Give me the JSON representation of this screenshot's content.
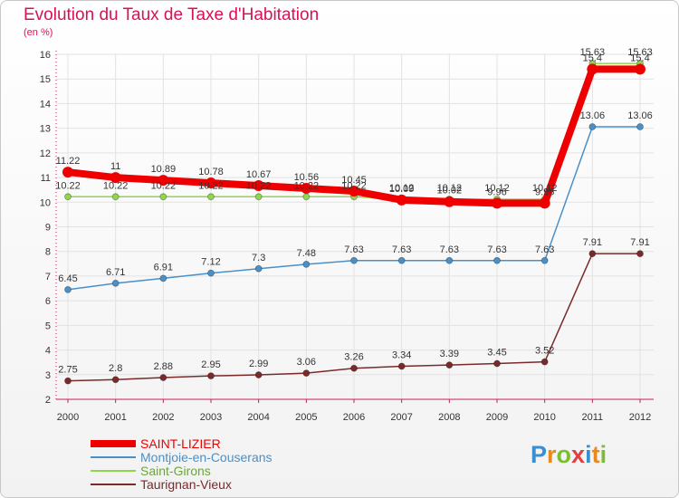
{
  "chart_data": {
    "type": "line",
    "title": "Evolution du Taux de Taxe d'Habitation",
    "subtitle": "(en %)",
    "categories": [
      "2000",
      "2001",
      "2002",
      "2003",
      "2004",
      "2005",
      "2006",
      "2007",
      "2008",
      "2009",
      "2010",
      "2011",
      "2012"
    ],
    "ylim": [
      2,
      16
    ],
    "yticks": [
      2,
      3,
      4,
      5,
      6,
      7,
      8,
      9,
      10,
      11,
      12,
      13,
      14,
      15,
      16
    ],
    "grid": true,
    "legend_position": "bottom-left",
    "series": [
      {
        "name": "SAINT-LIZIER",
        "color": "#ee0000",
        "values": [
          11.22,
          11,
          10.89,
          10.78,
          10.67,
          10.56,
          10.45,
          10.09,
          10.02,
          9.96,
          9.96,
          15.4,
          15.4
        ],
        "labels": [
          "11.22",
          "11",
          "10.89",
          "10.78",
          "10.67",
          "10.56",
          "10.45",
          "10.09",
          "10.02",
          "9.96",
          "9.96",
          "15.4",
          "15.4"
        ]
      },
      {
        "name": "Montjoie-en-Couserans",
        "color": "#4a90c8",
        "values": [
          6.45,
          6.71,
          6.91,
          7.12,
          7.3,
          7.48,
          7.63,
          7.63,
          7.63,
          7.63,
          7.63,
          13.06,
          13.06
        ],
        "labels": [
          "6.45",
          "6.71",
          "6.91",
          "7.12",
          "7.3",
          "7.48",
          "7.63",
          "7.63",
          "7.63",
          "7.63",
          "7.63",
          "13.06",
          "13.06"
        ]
      },
      {
        "name": "Saint-Girons",
        "color": "#8ed64a",
        "values": [
          10.22,
          10.22,
          10.22,
          10.22,
          10.22,
          10.22,
          10.22,
          10.12,
          10.12,
          10.12,
          10.12,
          15.63,
          15.63
        ],
        "labels": [
          "10.22",
          "10.22",
          "10.22",
          "10.22",
          "10.22",
          "10.22",
          "10.22",
          "10.12",
          "10.12",
          "10.12",
          "10.12",
          "15.63",
          "15.63"
        ]
      },
      {
        "name": "Taurignan-Vieux",
        "color": "#7a2a2a",
        "values": [
          2.75,
          2.8,
          2.88,
          2.95,
          2.99,
          3.06,
          3.26,
          3.34,
          3.39,
          3.45,
          3.52,
          7.91,
          7.91
        ],
        "labels": [
          "2.75",
          "2.8",
          "2.88",
          "2.95",
          "2.99",
          "3.06",
          "3.26",
          "3.34",
          "3.39",
          "3.45",
          "3.52",
          "7.91",
          "7.91"
        ]
      }
    ]
  },
  "branding": {
    "logo_text": "Proxiti",
    "logo_letters": [
      {
        "ch": "P",
        "color": "#3a8fd0"
      },
      {
        "ch": "r",
        "color": "#e8891c"
      },
      {
        "ch": "o",
        "color": "#7bbf2e"
      },
      {
        "ch": "x",
        "color": "#e04040"
      },
      {
        "ch": "i",
        "color": "#3a8fd0"
      },
      {
        "ch": "t",
        "color": "#e8891c"
      },
      {
        "ch": "i",
        "color": "#7bbf2e"
      }
    ]
  }
}
